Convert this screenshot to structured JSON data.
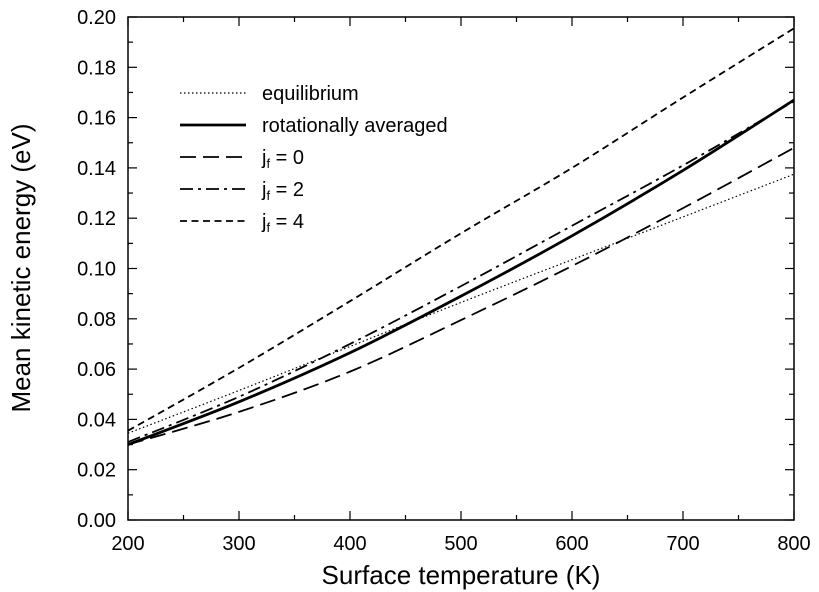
{
  "chart_data": {
    "type": "line",
    "xlabel": "Surface temperature (K)",
    "ylabel": "Mean kinetic energy (eV)",
    "xlim": [
      200,
      800
    ],
    "ylim": [
      0.0,
      0.2
    ],
    "xticks": [
      "200",
      "300",
      "400",
      "500",
      "600",
      "700",
      "800"
    ],
    "yticks": [
      "0.00",
      "0.02",
      "0.04",
      "0.06",
      "0.08",
      "0.10",
      "0.12",
      "0.14",
      "0.16",
      "0.18",
      "0.20"
    ],
    "grid": false,
    "legend_position": "top-left",
    "x": [
      200,
      300,
      400,
      500,
      600,
      700,
      800
    ],
    "series": [
      {
        "name": "equilibrium",
        "style": "dotted",
        "width": 1.2,
        "values": [
          0.0345,
          0.0515,
          0.069,
          0.0865,
          0.1035,
          0.1205,
          0.1375
        ]
      },
      {
        "name": "rotationally averaged",
        "style": "solid",
        "width": 2.8,
        "values": [
          0.03,
          0.047,
          0.0665,
          0.089,
          0.113,
          0.139,
          0.167
        ]
      },
      {
        "name": "j",
        "name_sub": "f",
        "name_suffix": " = 0",
        "style": "long-dash",
        "width": 1.8,
        "values": [
          0.03,
          0.043,
          0.059,
          0.0795,
          0.101,
          0.124,
          0.148
        ]
      },
      {
        "name": "j",
        "name_sub": "f",
        "name_suffix": " = 2",
        "style": "dash-dot",
        "width": 1.8,
        "values": [
          0.031,
          0.049,
          0.07,
          0.093,
          0.117,
          0.141,
          0.1665
        ]
      },
      {
        "name": "j",
        "name_sub": "f",
        "name_suffix": " = 4",
        "style": "short-dash",
        "width": 1.8,
        "values": [
          0.0355,
          0.0605,
          0.087,
          0.114,
          0.14,
          0.168,
          0.1955
        ]
      }
    ]
  }
}
